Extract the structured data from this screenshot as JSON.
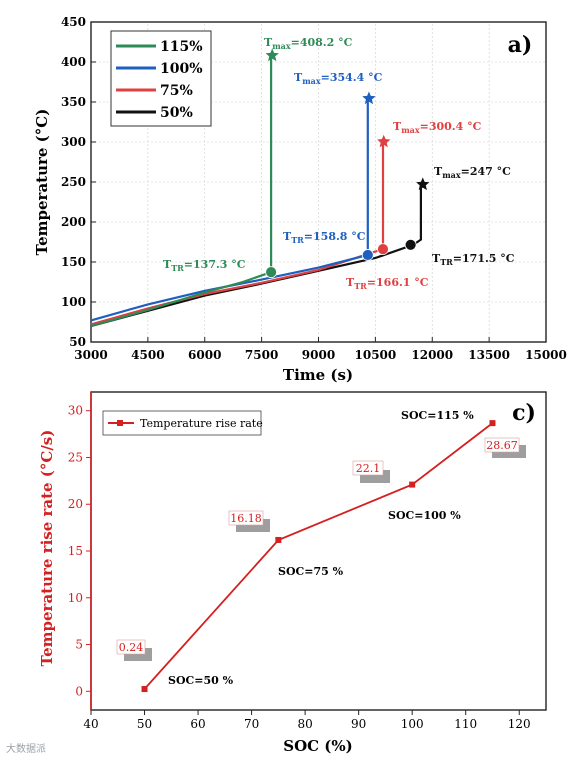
{
  "panel_a": {
    "label": "a)",
    "legend": [
      "115%",
      "100%",
      "75%",
      "50%"
    ],
    "annotations": {
      "tmax_115": "408.2 °C",
      "tmax_100": "354.4 °C",
      "tmax_75": "300.4 °C",
      "tmax_50": "247 °C",
      "ttr_115": "137.3 °C",
      "ttr_100": "158.8 °C",
      "ttr_75": "166.1 °C",
      "ttr_50": "171.5 °C"
    }
  },
  "panel_c": {
    "label": "c)",
    "legend": "Temperature rise rate",
    "soc_labels": [
      "SOC=50 %",
      "SOC=75 %",
      "SOC=100 %",
      "SOC=115 %"
    ],
    "value_labels": [
      "0.24",
      "16.18",
      "22.1",
      "28.67"
    ]
  },
  "watermark": "大数据派",
  "chart_data": [
    {
      "type": "line",
      "xlabel": "Time (s)",
      "ylabel": "Temperature (°C)",
      "xlim": [
        3000,
        15000
      ],
      "ylim": [
        50,
        450
      ],
      "xticks": [
        3000,
        4500,
        6000,
        7500,
        9000,
        10500,
        12000,
        13500,
        15000
      ],
      "yticks": [
        50,
        100,
        150,
        200,
        250,
        300,
        350,
        400,
        450
      ],
      "grid": true,
      "legend_position": "top-left",
      "series": [
        {
          "name": "115%",
          "color": "#2e8b57",
          "x": [
            3000,
            4500,
            6000,
            7000,
            7750,
            7750,
            7750
          ],
          "y": [
            70,
            90,
            112,
            125,
            137.3,
            137.3,
            408.2
          ],
          "tr": [
            7750,
            137.3
          ],
          "tmax": [
            7780,
            408.2
          ]
        },
        {
          "name": "100%",
          "color": "#1f5fbf",
          "x": [
            3000,
            4500,
            6000,
            7500,
            9000,
            10300,
            10300,
            10300
          ],
          "y": [
            77,
            97,
            114,
            128,
            143,
            158.8,
            158.8,
            354.4
          ],
          "tr": [
            10300,
            158.8
          ],
          "tmax": [
            10330,
            354.4
          ]
        },
        {
          "name": "75%",
          "color": "#e04040",
          "x": [
            3000,
            4500,
            6000,
            7500,
            9000,
            10700,
            10700,
            10700
          ],
          "y": [
            72,
            92,
            110,
            124,
            140,
            166.1,
            166.1,
            300.4
          ],
          "tr": [
            10700,
            166.1
          ],
          "tmax": [
            10720,
            300.4
          ]
        },
        {
          "name": "50%",
          "color": "#111111",
          "x": [
            3000,
            4500,
            6000,
            7500,
            9000,
            10500,
            11500,
            11700,
            11700
          ],
          "y": [
            70,
            89,
            108,
            123,
            139,
            155,
            171.5,
            178,
            247
          ],
          "tr": [
            11430,
            171.5
          ],
          "tmax": [
            11750,
            247
          ]
        }
      ]
    },
    {
      "type": "line",
      "xlabel": "SOC (%)",
      "ylabel": "Temperature rise rate (°C/s)",
      "xlim": [
        40,
        125
      ],
      "ylim": [
        -2,
        32
      ],
      "xticks": [
        40,
        50,
        60,
        70,
        80,
        90,
        100,
        110,
        120
      ],
      "yticks": [
        0,
        5,
        10,
        15,
        20,
        25,
        30
      ],
      "legend_position": "top-left",
      "series": [
        {
          "name": "Temperature rise rate",
          "color": "#d42020",
          "x": [
            50,
            75,
            100,
            115
          ],
          "y": [
            0.24,
            16.18,
            22.1,
            28.67
          ]
        }
      ]
    }
  ]
}
